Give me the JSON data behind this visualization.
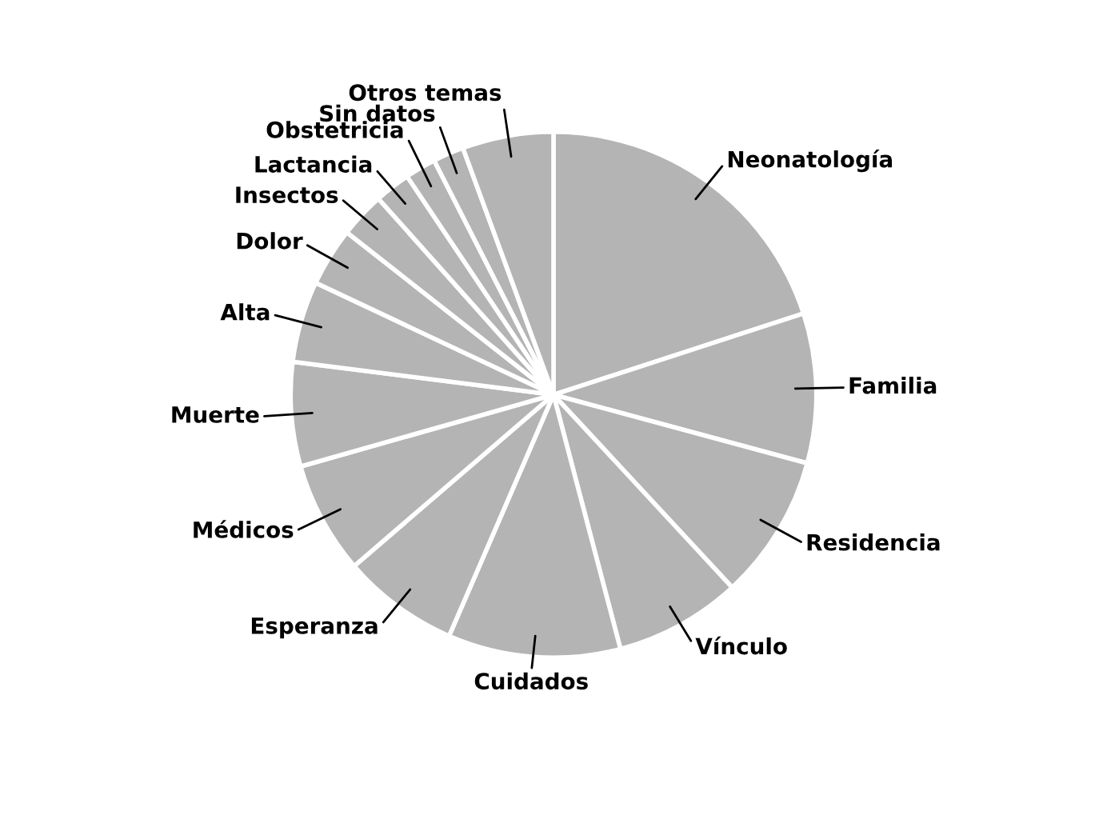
{
  "chart_data": {
    "type": "pie",
    "categories": [
      "Neonatología",
      "Familia",
      "Residencia",
      "Vínculo",
      "Cuidados",
      "Esperanza",
      "Médicos",
      "Muerte",
      "Alta",
      "Dolor",
      "Insectos",
      "Lactancia",
      "Obstetricia",
      "Sin datos",
      "Otros temas"
    ],
    "values": [
      20,
      9.2,
      8.9,
      7.8,
      10.6,
      7.2,
      6.9,
      6.4,
      5,
      3.6,
      2.8,
      2.2,
      1.9,
      1.9,
      5.6
    ],
    "colors": [
      "#b4b4b4",
      "#b4b4b4",
      "#b4b4b4",
      "#b4b4b4",
      "#b4b4b4",
      "#b4b4b4",
      "#b4b4b4",
      "#b4b4b4",
      "#b4b4b4",
      "#b4b4b4",
      "#b4b4b4",
      "#b4b4b4",
      "#b4b4b4",
      "#b4b4b4",
      "#b4b4b4"
    ]
  }
}
